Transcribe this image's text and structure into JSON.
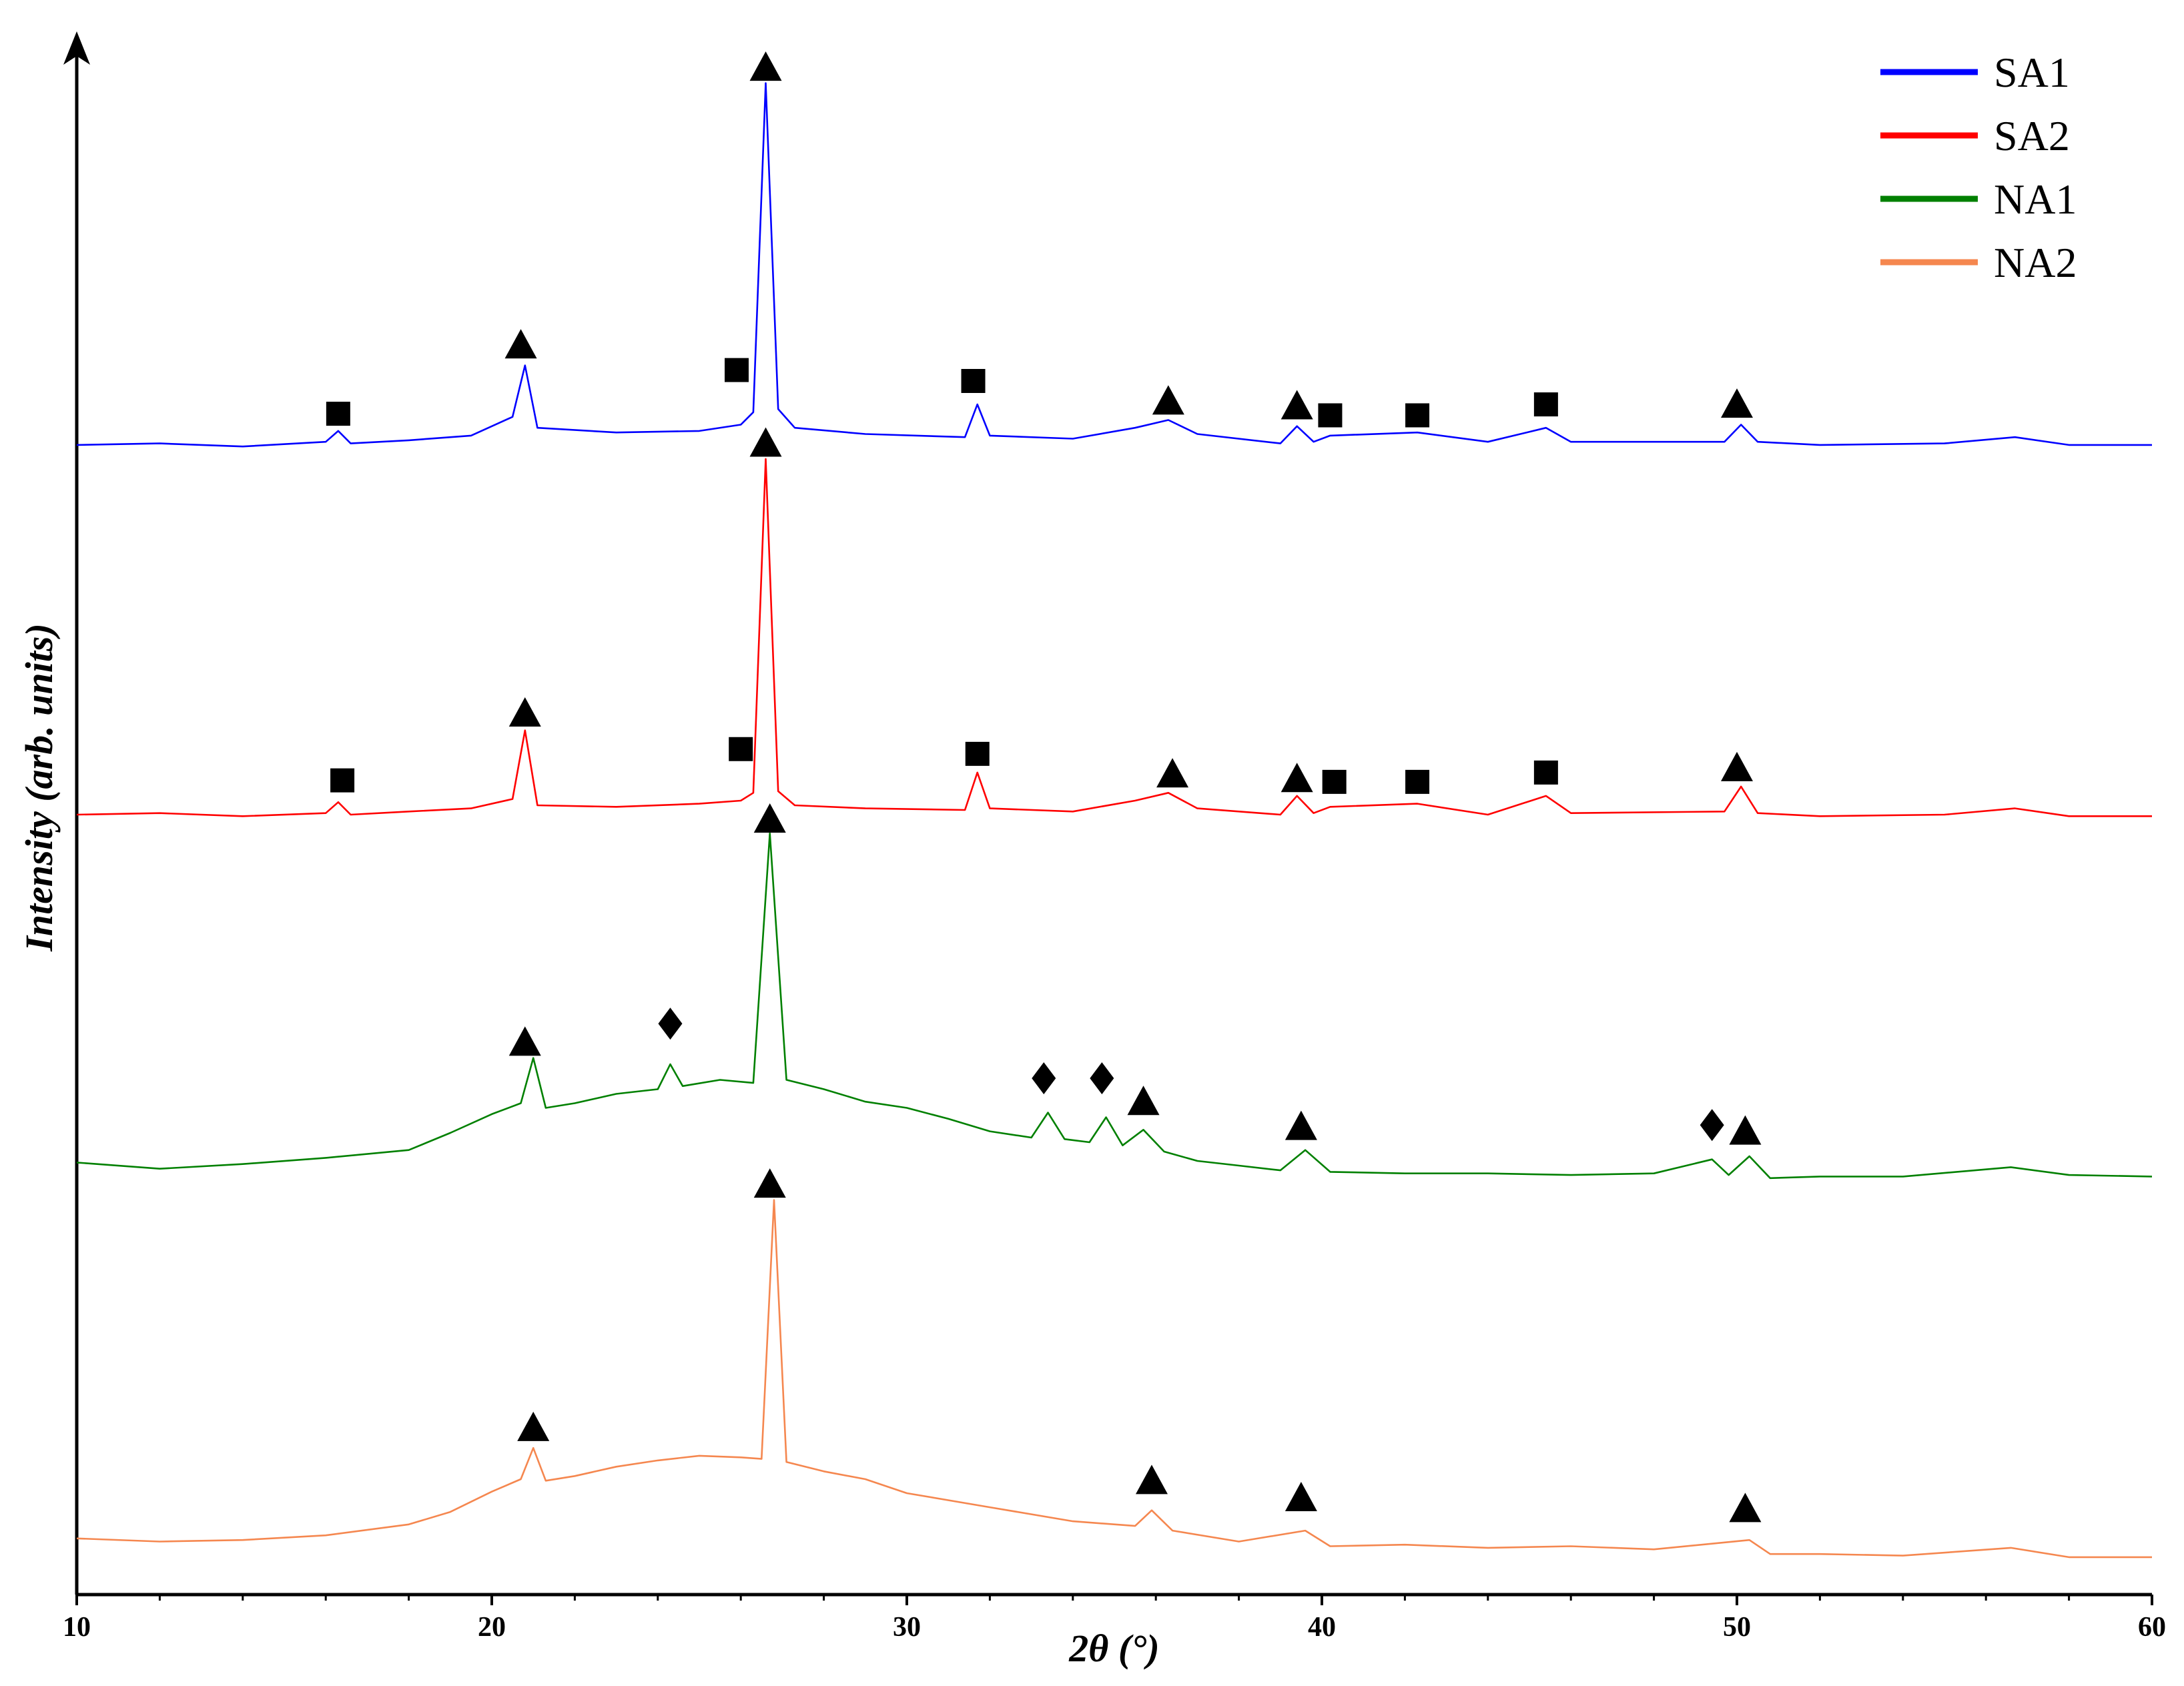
{
  "chart_data": {
    "type": "line",
    "xlabel": "2θ (°)",
    "ylabel": "Intensity (arb. units)",
    "xlim": [
      10,
      60
    ],
    "xticks": [
      10,
      20,
      30,
      40,
      50,
      60
    ],
    "xminorticks": [
      12,
      14,
      16,
      18,
      22,
      24,
      26,
      28,
      32,
      34,
      36,
      38,
      42,
      44,
      46,
      48,
      52,
      54,
      56,
      58
    ],
    "ylim": [
      0,
      100
    ],
    "legend": "upper right",
    "series": [
      {
        "name": "SA1",
        "color": "#0000ff",
        "x": [
          10,
          12,
          14,
          16,
          16.3,
          16.6,
          18,
          19.5,
          20.5,
          20.8,
          21.1,
          23,
          25,
          26,
          26.3,
          26.6,
          26.9,
          27.3,
          29,
          31.4,
          31.7,
          32,
          34,
          35.5,
          36.3,
          37,
          39,
          39.4,
          39.8,
          40.2,
          42.3,
          44,
          45.4,
          46,
          49.7,
          50.1,
          50.5,
          52,
          55,
          56.7,
          58,
          60
        ],
        "values": [
          73.7,
          73.8,
          73.6,
          73.9,
          74.6,
          73.8,
          74.0,
          74.3,
          75.5,
          78.8,
          74.8,
          74.5,
          74.6,
          75.0,
          75.8,
          96.9,
          76.0,
          74.8,
          74.4,
          74.2,
          76.3,
          74.3,
          74.1,
          74.8,
          75.3,
          74.4,
          73.8,
          74.9,
          73.9,
          74.3,
          74.5,
          73.9,
          74.8,
          73.9,
          73.9,
          75.0,
          73.9,
          73.7,
          73.8,
          74.2,
          73.7,
          73.7
        ],
        "markers": [
          {
            "symbol": "triangle",
            "x": 26.6,
            "y": 97.9
          },
          {
            "symbol": "triangle",
            "x": 20.7,
            "y": 80.1
          },
          {
            "symbol": "square",
            "x": 16.3,
            "y": 75.7
          },
          {
            "symbol": "square",
            "x": 25.9,
            "y": 78.5
          },
          {
            "symbol": "square",
            "x": 31.6,
            "y": 77.8
          },
          {
            "symbol": "triangle",
            "x": 36.3,
            "y": 76.5
          },
          {
            "symbol": "triangle",
            "x": 39.4,
            "y": 76.2
          },
          {
            "symbol": "square",
            "x": 40.2,
            "y": 75.6
          },
          {
            "symbol": "square",
            "x": 42.3,
            "y": 75.6
          },
          {
            "symbol": "square",
            "x": 45.4,
            "y": 76.3
          },
          {
            "symbol": "triangle",
            "x": 50.0,
            "y": 76.3
          }
        ]
      },
      {
        "name": "SA2",
        "color": "#ff0000",
        "x": [
          10,
          12,
          14,
          16,
          16.3,
          16.6,
          18,
          19.5,
          20.5,
          20.8,
          21.1,
          23,
          25,
          26,
          26.3,
          26.6,
          26.9,
          27.3,
          29,
          31.4,
          31.7,
          32,
          34,
          35.5,
          36.3,
          37,
          39,
          39.4,
          39.8,
          40.2,
          42.3,
          44,
          45.4,
          46,
          49.7,
          50.1,
          50.5,
          52,
          55,
          56.7,
          58,
          60
        ],
        "values": [
          50.0,
          50.1,
          49.9,
          50.1,
          50.8,
          50.0,
          50.2,
          50.4,
          51.0,
          55.4,
          50.6,
          50.5,
          50.7,
          50.9,
          51.4,
          72.8,
          51.5,
          50.6,
          50.4,
          50.3,
          52.7,
          50.4,
          50.2,
          50.9,
          51.4,
          50.4,
          50.0,
          51.2,
          50.1,
          50.5,
          50.7,
          50.0,
          51.2,
          50.1,
          50.2,
          51.8,
          50.1,
          49.9,
          50.0,
          50.4,
          49.9,
          49.9
        ],
        "markers": [
          {
            "symbol": "triangle",
            "x": 26.6,
            "y": 73.8
          },
          {
            "symbol": "triangle",
            "x": 20.8,
            "y": 56.5
          },
          {
            "symbol": "square",
            "x": 16.4,
            "y": 52.2
          },
          {
            "symbol": "square",
            "x": 26.0,
            "y": 54.2
          },
          {
            "symbol": "square",
            "x": 31.7,
            "y": 53.9
          },
          {
            "symbol": "triangle",
            "x": 36.4,
            "y": 52.6
          },
          {
            "symbol": "triangle",
            "x": 39.4,
            "y": 52.3
          },
          {
            "symbol": "square",
            "x": 40.3,
            "y": 52.1
          },
          {
            "symbol": "square",
            "x": 42.3,
            "y": 52.1
          },
          {
            "symbol": "square",
            "x": 45.4,
            "y": 52.7
          },
          {
            "symbol": "triangle",
            "x": 50.0,
            "y": 53.0
          }
        ]
      },
      {
        "name": "NA1",
        "color": "#008000",
        "x": [
          10,
          12,
          14,
          16,
          18,
          19,
          20,
          20.7,
          21,
          21.3,
          22,
          23,
          24,
          24.3,
          24.6,
          25.5,
          26.3,
          26.7,
          27.1,
          28,
          29,
          30,
          31,
          32,
          33,
          33.4,
          33.8,
          34.4,
          34.8,
          35.2,
          35.7,
          36.2,
          37,
          38,
          39,
          39.6,
          40.2,
          42,
          44,
          46,
          48,
          49.4,
          49.8,
          50.3,
          50.8,
          52,
          54,
          56.6,
          58,
          60
        ],
        "values": [
          27.7,
          27.3,
          27.6,
          28.0,
          28.5,
          29.6,
          30.8,
          31.5,
          34.4,
          31.2,
          31.5,
          32.1,
          32.4,
          34.0,
          32.6,
          33.0,
          32.8,
          48.8,
          33.0,
          32.4,
          31.6,
          31.2,
          30.5,
          29.7,
          29.3,
          30.9,
          29.2,
          29.0,
          30.6,
          28.8,
          29.8,
          28.4,
          27.8,
          27.5,
          27.2,
          28.5,
          27.1,
          27.0,
          27.0,
          26.9,
          27.0,
          27.9,
          26.9,
          28.1,
          26.7,
          26.8,
          26.8,
          27.4,
          26.9,
          26.8
        ],
        "markers": [
          {
            "symbol": "triangle",
            "x": 26.7,
            "y": 49.7
          },
          {
            "symbol": "triangle",
            "x": 20.8,
            "y": 35.4
          },
          {
            "symbol": "diamond",
            "x": 24.3,
            "y": 36.6
          },
          {
            "symbol": "diamond",
            "x": 33.3,
            "y": 33.1
          },
          {
            "symbol": "diamond",
            "x": 34.7,
            "y": 33.1
          },
          {
            "symbol": "triangle",
            "x": 35.7,
            "y": 31.6
          },
          {
            "symbol": "triangle",
            "x": 39.5,
            "y": 30.0
          },
          {
            "symbol": "diamond",
            "x": 49.4,
            "y": 30.1
          },
          {
            "symbol": "triangle",
            "x": 50.2,
            "y": 29.7
          }
        ]
      },
      {
        "name": "NA2",
        "color": "#f5874f",
        "x": [
          10,
          12,
          14,
          16,
          18,
          19,
          20,
          20.7,
          21,
          21.3,
          22,
          23,
          24,
          25,
          26,
          26.5,
          26.8,
          27.1,
          28,
          29,
          30,
          32,
          34,
          35.5,
          35.9,
          36.4,
          38,
          39.6,
          40.2,
          42,
          44,
          46,
          48,
          50.3,
          50.8,
          52,
          54,
          56.6,
          58,
          60
        ],
        "values": [
          3.6,
          3.4,
          3.5,
          3.8,
          4.5,
          5.3,
          6.6,
          7.4,
          9.4,
          7.3,
          7.6,
          8.2,
          8.6,
          8.9,
          8.8,
          8.7,
          25.3,
          8.5,
          7.9,
          7.4,
          6.5,
          5.6,
          4.7,
          4.4,
          5.4,
          4.1,
          3.4,
          4.1,
          3.1,
          3.2,
          3.0,
          3.1,
          2.9,
          3.5,
          2.6,
          2.6,
          2.5,
          3.0,
          2.4,
          2.4
        ],
        "markers": [
          {
            "symbol": "triangle",
            "x": 26.7,
            "y": 26.3
          },
          {
            "symbol": "triangle",
            "x": 21.0,
            "y": 10.7
          },
          {
            "symbol": "triangle",
            "x": 35.9,
            "y": 7.3
          },
          {
            "symbol": "triangle",
            "x": 39.5,
            "y": 6.2
          },
          {
            "symbol": "triangle",
            "x": 50.2,
            "y": 5.5
          }
        ]
      }
    ]
  }
}
